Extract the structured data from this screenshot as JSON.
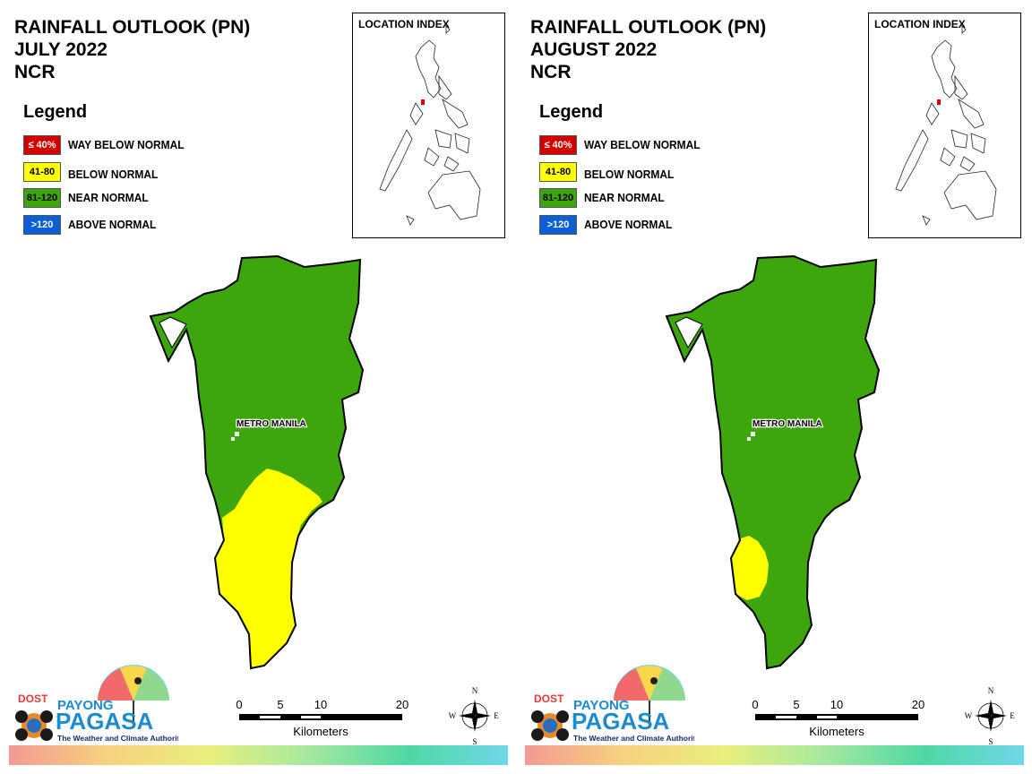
{
  "panels": [
    {
      "title_line1": "RAINFALL OUTLOOK (PN)",
      "title_line2": "JULY 2022",
      "title_line3": "NCR",
      "legend_title": "Legend",
      "legend": [
        {
          "swatch": "≤ 40%",
          "label": "WAY BELOW NORMAL",
          "color": "#d40000",
          "text_color": "#ffffff"
        },
        {
          "swatch": "41-80",
          "label": "BELOW NORMAL",
          "color": "#ffff00",
          "text_color": "#000000"
        },
        {
          "swatch": "81-120",
          "label": "NEAR NORMAL",
          "color": "#3ea60d",
          "text_color": "#000000"
        },
        {
          "swatch": ">120",
          "label": "ABOVE NORMAL",
          "color": "#0a5fd6",
          "text_color": "#ffffff"
        }
      ],
      "location_index_title": "LOCATION INDEX",
      "map_label": "METRO MANILA",
      "map_zones": {
        "near_normal_color": "#3ea60d",
        "below_normal_color": "#ffff00",
        "below_normal_extent": "southern portion"
      },
      "scale": {
        "ticks": [
          "0",
          "5",
          "10",
          "20"
        ],
        "unit_label": "Kilometers"
      },
      "compass": {
        "n": "N",
        "s": "S",
        "e": "E",
        "w": "W"
      },
      "logo": {
        "dost": "DOST",
        "payong": "PAYONG",
        "pagasa": "PAGASA",
        "tagline": "The Weather and Climate Authority"
      }
    },
    {
      "title_line1": "RAINFALL OUTLOOK (PN)",
      "title_line2": "AUGUST 2022",
      "title_line3": "NCR",
      "legend_title": "Legend",
      "legend": [
        {
          "swatch": "≤ 40%",
          "label": "WAY BELOW NORMAL",
          "color": "#d40000",
          "text_color": "#ffffff"
        },
        {
          "swatch": "41-80",
          "label": "BELOW NORMAL",
          "color": "#ffff00",
          "text_color": "#000000"
        },
        {
          "swatch": "81-120",
          "label": "NEAR NORMAL",
          "color": "#3ea60d",
          "text_color": "#000000"
        },
        {
          "swatch": ">120",
          "label": "ABOVE NORMAL",
          "color": "#0a5fd6",
          "text_color": "#ffffff"
        }
      ],
      "location_index_title": "LOCATION INDEX",
      "map_label": "METRO MANILA",
      "map_zones": {
        "near_normal_color": "#3ea60d",
        "below_normal_color": "#ffff00",
        "below_normal_extent": "small southwestern patch"
      },
      "scale": {
        "ticks": [
          "0",
          "5",
          "10",
          "20"
        ],
        "unit_label": "Kilometers"
      },
      "compass": {
        "n": "N",
        "s": "S",
        "e": "E",
        "w": "W"
      },
      "logo": {
        "dost": "DOST",
        "payong": "PAYONG",
        "pagasa": "PAGASA",
        "tagline": "The Weather and Climate Authority"
      }
    }
  ]
}
